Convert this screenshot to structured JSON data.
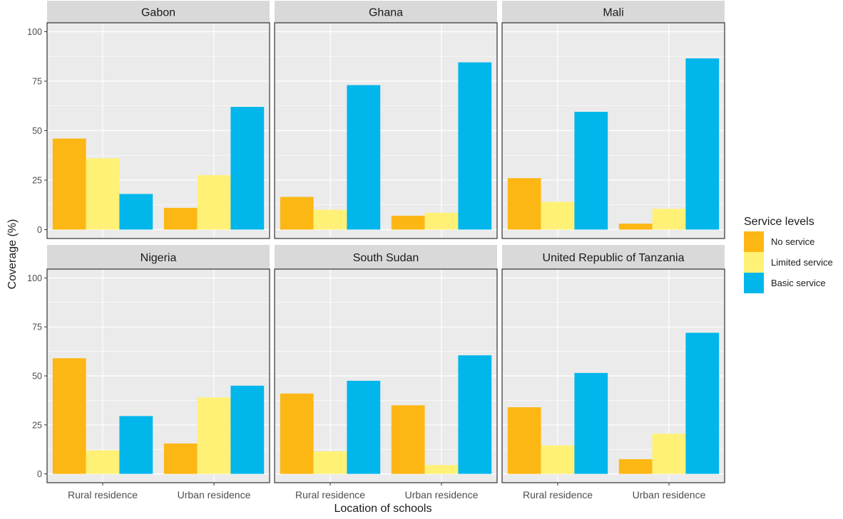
{
  "chart_data": {
    "type": "bar",
    "facets": [
      "Gabon",
      "Ghana",
      "Mali",
      "Nigeria",
      "South Sudan",
      "United Republic of Tanzania"
    ],
    "categories": [
      "Rural residence",
      "Urban residence"
    ],
    "series": [
      {
        "name": "No service",
        "color": "#FDB714",
        "values": [
          [
            46,
            11
          ],
          [
            16.5,
            7
          ],
          [
            26,
            3
          ],
          [
            59,
            15.5
          ],
          [
            41,
            35
          ],
          [
            34,
            7.5
          ]
        ]
      },
      {
        "name": "Limited service",
        "color": "#FFF176",
        "values": [
          [
            36,
            27.5
          ],
          [
            10,
            8.5
          ],
          [
            14,
            10.5
          ],
          [
            12,
            39
          ],
          [
            11.5,
            4.5
          ],
          [
            14.5,
            20.5
          ]
        ]
      },
      {
        "name": "Basic service",
        "color": "#00B6EB",
        "values": [
          [
            18,
            62
          ],
          [
            73,
            84.5
          ],
          [
            59.5,
            86.5
          ],
          [
            29.5,
            45
          ],
          [
            47.5,
            60.5
          ],
          [
            51.5,
            72
          ]
        ]
      }
    ],
    "xlabel": "Location of schools",
    "ylabel": "Coverage (%)",
    "ylim": [
      0,
      100
    ],
    "yticks": [
      0,
      25,
      50,
      75,
      100
    ],
    "legend_title": "Service levels",
    "legend_position": "right",
    "grid": true,
    "panel_background": "#EBEBEB",
    "strip_background": "#D9D9D9"
  }
}
